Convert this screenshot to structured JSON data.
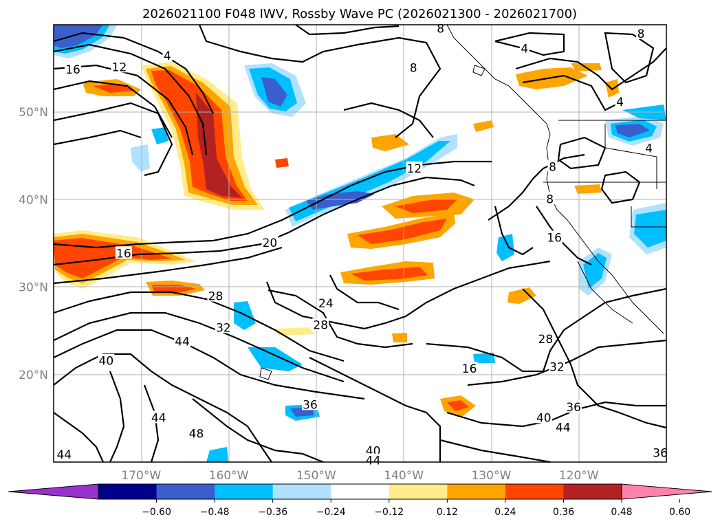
{
  "title": "2026021100 F048 IWV, Rossby Wave PC (2026021300 - 2026021700)",
  "map": {
    "lon_range": [
      -180,
      -110
    ],
    "lat_range": [
      10,
      60
    ],
    "lon_ticks": [
      {
        "value": -170,
        "label": "170°W"
      },
      {
        "value": -160,
        "label": "160°W"
      },
      {
        "value": -150,
        "label": "150°W"
      },
      {
        "value": -140,
        "label": "140°W"
      },
      {
        "value": -130,
        "label": "130°W"
      },
      {
        "value": -120,
        "label": "120°W"
      }
    ],
    "lat_ticks": [
      {
        "value": 50,
        "label": "50°N"
      },
      {
        "value": 40,
        "label": "40°N"
      },
      {
        "value": 30,
        "label": "30°N"
      },
      {
        "value": 20,
        "label": "20°N"
      }
    ],
    "contour_labels": [
      {
        "text": "4",
        "lon": -167.0,
        "lat": 56.4
      },
      {
        "text": "12",
        "lon": -172.5,
        "lat": 55.1
      },
      {
        "text": "16",
        "lon": -177.8,
        "lat": 54.8
      },
      {
        "text": "8",
        "lon": -138.9,
        "lat": 55.0
      },
      {
        "text": "8",
        "lon": -135.8,
        "lat": 59.5
      },
      {
        "text": "8",
        "lon": -112.9,
        "lat": 58.9
      },
      {
        "text": "4",
        "lon": -126.2,
        "lat": 57.2
      },
      {
        "text": "4",
        "lon": -115.3,
        "lat": 51.1
      },
      {
        "text": "4",
        "lon": -112.0,
        "lat": 45.8
      },
      {
        "text": "8",
        "lon": -123.0,
        "lat": 43.7
      },
      {
        "text": "8",
        "lon": -123.3,
        "lat": 40.0
      },
      {
        "text": "12",
        "lon": -138.8,
        "lat": 43.5
      },
      {
        "text": "16",
        "lon": -122.8,
        "lat": 35.6
      },
      {
        "text": "16",
        "lon": -172.0,
        "lat": 33.8
      },
      {
        "text": "20",
        "lon": -155.3,
        "lat": 35.0
      },
      {
        "text": "28",
        "lon": -161.5,
        "lat": 28.9
      },
      {
        "text": "32",
        "lon": -160.6,
        "lat": 25.3
      },
      {
        "text": "24",
        "lon": -148.9,
        "lat": 28.1
      },
      {
        "text": "28",
        "lon": -149.5,
        "lat": 25.6
      },
      {
        "text": "44",
        "lon": -165.3,
        "lat": 23.7
      },
      {
        "text": "40",
        "lon": -174.0,
        "lat": 21.5
      },
      {
        "text": "16",
        "lon": -132.5,
        "lat": 20.6
      },
      {
        "text": "28",
        "lon": -123.8,
        "lat": 24.0
      },
      {
        "text": "32",
        "lon": -122.5,
        "lat": 20.8
      },
      {
        "text": "36",
        "lon": -150.7,
        "lat": 16.5
      },
      {
        "text": "44",
        "lon": -168.0,
        "lat": 15.0
      },
      {
        "text": "48",
        "lon": -163.7,
        "lat": 13.2
      },
      {
        "text": "36",
        "lon": -120.6,
        "lat": 16.2
      },
      {
        "text": "40",
        "lon": -124.0,
        "lat": 15.0
      },
      {
        "text": "44",
        "lon": -121.8,
        "lat": 13.9
      },
      {
        "text": "40",
        "lon": -143.5,
        "lat": 11.2
      },
      {
        "text": "44",
        "lon": -143.5,
        "lat": 10.1
      },
      {
        "text": "44",
        "lon": -178.8,
        "lat": 10.8
      },
      {
        "text": "36",
        "lon": -110.7,
        "lat": 11.0
      }
    ]
  },
  "colorbar": {
    "ticks": [
      "−0.60",
      "−0.48",
      "−0.36",
      "−0.24",
      "−0.12",
      "0.12",
      "0.24",
      "0.36",
      "0.48",
      "0.60"
    ],
    "colors": [
      "#9932cc",
      "#00008b",
      "#3a5fcd",
      "#00bfff",
      "#b0e2ff",
      "#ffffff",
      "#ffec8b",
      "#ffa500",
      "#ff4500",
      "#b22222",
      "#ff82ab"
    ]
  }
}
